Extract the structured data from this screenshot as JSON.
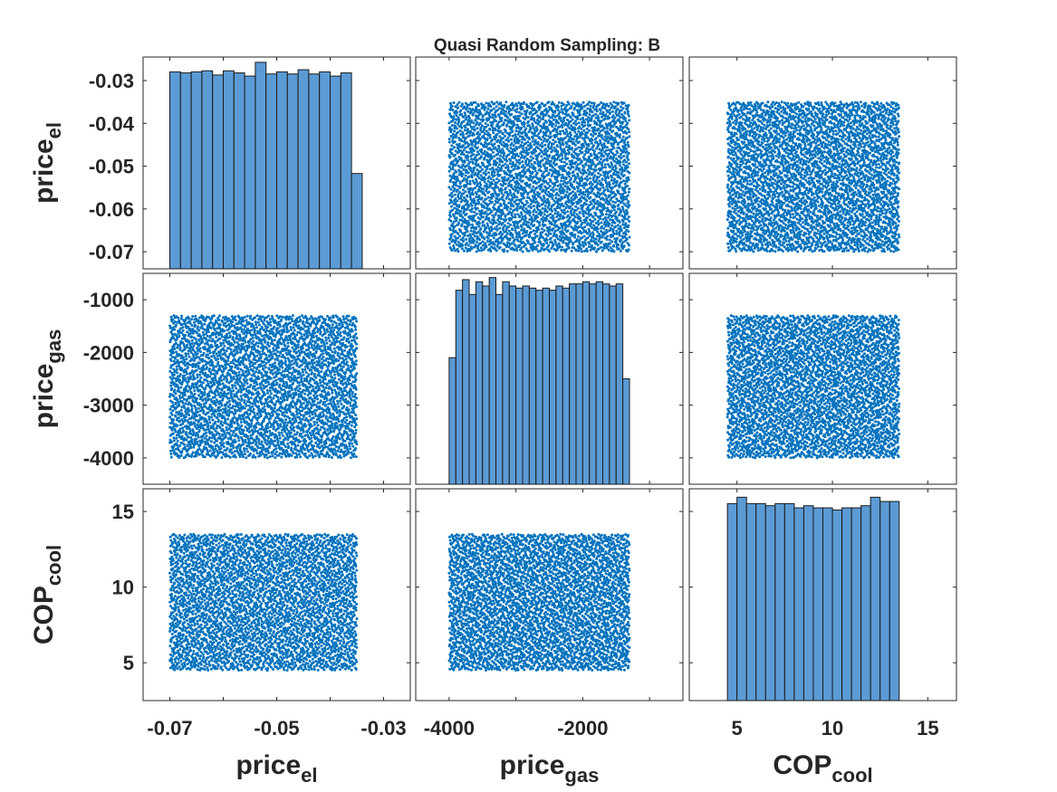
{
  "chart_data": {
    "type": "scatter-matrix",
    "title": "Quasi Random Sampling: B",
    "colors": {
      "points": "#0072bd",
      "bars": "#5b9bd5",
      "bar_edge": "#1a1a1a"
    },
    "variables": [
      {
        "id": "price_el",
        "label": "price",
        "sub": "el",
        "range": [
          -0.07,
          -0.035
        ],
        "lim": [
          -0.075,
          -0.025
        ],
        "ticks": [
          -0.07,
          -0.06,
          -0.05,
          -0.04,
          -0.03
        ],
        "tick_labels": [
          "-0.07",
          "",
          "-0.05",
          "",
          "-0.03"
        ],
        "row_lim": [
          -0.074,
          -0.0245
        ],
        "row_ticks": [
          -0.07,
          -0.06,
          -0.05,
          -0.04,
          -0.03
        ],
        "row_tick_labels": [
          "-0.07",
          "-0.06",
          "-0.05",
          "-0.04",
          "-0.03"
        ]
      },
      {
        "id": "price_gas",
        "label": "price",
        "sub": "gas",
        "range": [
          -4000,
          -1300
        ],
        "lim": [
          -4500,
          -500
        ],
        "ticks": [
          -4000,
          -3000,
          -2000,
          -1000
        ],
        "tick_labels": [
          "-4000",
          "",
          "-2000",
          ""
        ],
        "row_lim": [
          -4500,
          -500
        ],
        "row_ticks": [
          -4000,
          -3000,
          -2000,
          -1000
        ],
        "row_tick_labels": [
          "-4000",
          "-3000",
          "-2000",
          "-1000"
        ]
      },
      {
        "id": "cop_cool",
        "label": "COP",
        "sub": "cool",
        "range": [
          4.5,
          13.5
        ],
        "lim": [
          2.5,
          16.5
        ],
        "ticks": [
          5,
          10,
          15
        ],
        "tick_labels": [
          "5",
          "10",
          "15"
        ],
        "row_lim": [
          2.5,
          16.5
        ],
        "row_ticks": [
          5,
          10,
          15
        ],
        "row_tick_labels": [
          "5",
          "10",
          "15"
        ]
      }
    ],
    "histograms": [
      {
        "variable": "price_el",
        "bin_edges": [
          -0.07,
          -0.068,
          -0.066,
          -0.064,
          -0.062,
          -0.06,
          -0.058,
          -0.056,
          -0.054,
          -0.052,
          -0.05,
          -0.048,
          -0.046,
          -0.044,
          -0.042,
          -0.04,
          -0.038,
          -0.036,
          -0.034
        ],
        "counts": [
          0.93,
          0.925,
          0.93,
          0.935,
          0.915,
          0.935,
          0.925,
          0.91,
          0.975,
          0.92,
          0.93,
          0.92,
          0.94,
          0.92,
          0.93,
          0.91,
          0.925,
          0.45
        ]
      },
      {
        "variable": "price_gas",
        "bin_edges": [
          -4000,
          -3900,
          -3800,
          -3700,
          -3600,
          -3500,
          -3400,
          -3300,
          -3200,
          -3100,
          -3000,
          -2900,
          -2800,
          -2700,
          -2600,
          -2500,
          -2400,
          -2300,
          -2200,
          -2100,
          -2000,
          -1900,
          -1800,
          -1700,
          -1600,
          -1500,
          -1400,
          -1300
        ],
        "counts": [
          0.6,
          0.92,
          0.97,
          0.9,
          0.96,
          0.94,
          0.98,
          0.9,
          0.96,
          0.94,
          0.93,
          0.94,
          0.93,
          0.92,
          0.93,
          0.92,
          0.94,
          0.93,
          0.95,
          0.95,
          0.96,
          0.95,
          0.96,
          0.95,
          0.94,
          0.95,
          0.5
        ]
      },
      {
        "variable": "cop_cool",
        "bin_edges": [
          4.5,
          5.0,
          5.5,
          6.0,
          6.5,
          7.0,
          7.5,
          8.0,
          8.5,
          9.0,
          9.5,
          10.0,
          10.5,
          11.0,
          11.5,
          12.0,
          12.5,
          13.0,
          13.5
        ],
        "counts": [
          0.93,
          0.96,
          0.93,
          0.93,
          0.92,
          0.93,
          0.93,
          0.91,
          0.92,
          0.91,
          0.91,
          0.9,
          0.91,
          0.91,
          0.92,
          0.96,
          0.94,
          0.94
        ]
      }
    ],
    "points_per_panel": 3600,
    "grid": false,
    "legend": "none"
  }
}
